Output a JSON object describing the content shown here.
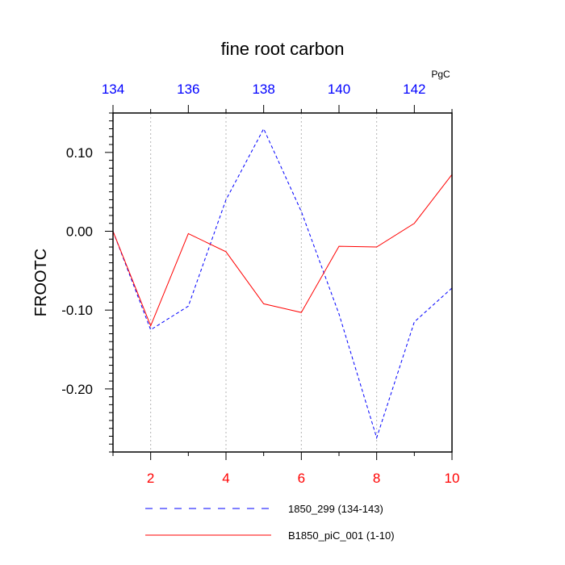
{
  "chart_data": {
    "type": "line",
    "title": "fine root carbon",
    "units": "PgC",
    "ylabel": "FROOTC",
    "xlabel": "",
    "ylim": [
      -0.28,
      0.15
    ],
    "y_ticks": [
      0.1,
      0.0,
      -0.1,
      -0.2
    ],
    "y_tick_labels": [
      "0.10",
      "0.00",
      "-0.10",
      "-0.20"
    ],
    "bottom_axis": {
      "range": [
        1,
        10
      ],
      "ticks": [
        2,
        4,
        6,
        8,
        10
      ],
      "tick_labels": [
        "2",
        "4",
        "6",
        "8",
        "10"
      ],
      "color": "#ff0000"
    },
    "top_axis": {
      "range": [
        134,
        143
      ],
      "ticks": [
        134,
        136,
        138,
        140,
        142
      ],
      "tick_labels": [
        "134",
        "136",
        "138",
        "140",
        "142"
      ],
      "color": "#0000ff"
    },
    "grid": "vertical dotted at bottom-axis ticks",
    "legend_position": "bottom",
    "series": [
      {
        "name": "1850_299 (134-143)",
        "axis": "top",
        "color": "#0000ff",
        "dash": "dashed",
        "x": [
          134,
          135,
          136,
          137,
          138,
          139,
          140,
          141,
          142,
          143
        ],
        "values": [
          0.0,
          -0.125,
          -0.095,
          0.04,
          0.13,
          0.025,
          -0.105,
          -0.262,
          -0.115,
          -0.072
        ]
      },
      {
        "name": "B1850_piC_001 (1-10)",
        "axis": "bottom",
        "color": "#ff0000",
        "dash": "solid",
        "x": [
          1,
          2,
          3,
          4,
          5,
          6,
          7,
          8,
          9,
          10
        ],
        "values": [
          0.0,
          -0.12,
          -0.003,
          -0.026,
          -0.092,
          -0.103,
          -0.019,
          -0.02,
          0.01,
          0.072
        ]
      }
    ]
  }
}
